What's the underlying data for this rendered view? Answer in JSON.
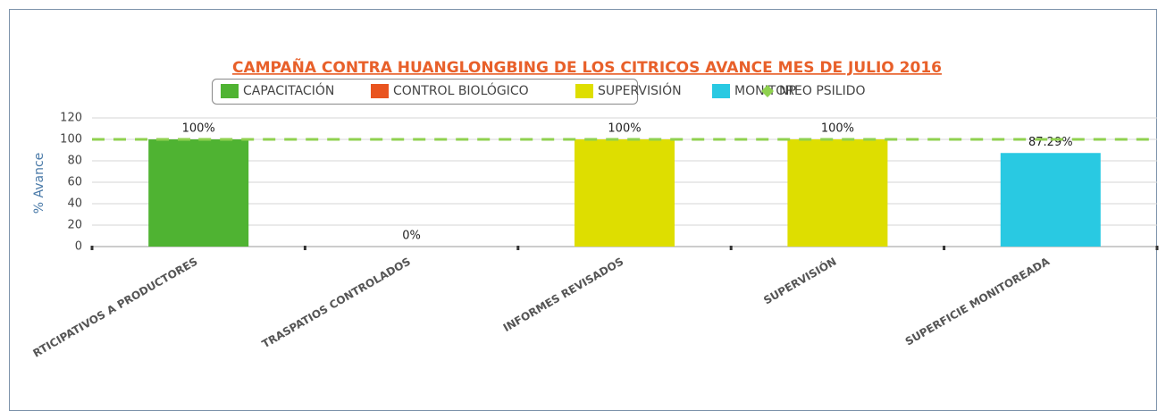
{
  "chart_data": {
    "type": "bar",
    "title": "CAMPAÑA CONTRA HUANGLONGBING DE LOS CITRICOS AVANCE MES DE JULIO 2016",
    "y_label": "% Avance",
    "categories": [
      "RTICIPATIVOS A PRODUCTORES",
      "TRASPATIOS CONTROLADOS",
      "INFORMES REVISADOS",
      "SUPERVISIÓN",
      "SUPERFICIE MONITOREADA"
    ],
    "series": [
      {
        "name": "CAPACITACIÓN",
        "color": "#4fb332",
        "values": [
          100,
          null,
          null,
          null,
          null
        ],
        "value_labels": [
          "100%",
          null,
          null,
          null,
          null
        ]
      },
      {
        "name": "CONTROL BIOLÓGICO",
        "color": "#e9541f",
        "values": [
          null,
          0,
          null,
          null,
          null
        ],
        "value_labels": [
          null,
          "0%",
          null,
          null,
          null
        ]
      },
      {
        "name": "SUPERVISIÓN",
        "color": "#dede00",
        "values": [
          null,
          null,
          100,
          100,
          null
        ],
        "value_labels": [
          null,
          null,
          "100%",
          "100%",
          null
        ]
      },
      {
        "name": "MONITOREO PSILIDO",
        "color": "#29c9e2",
        "values": [
          null,
          null,
          null,
          null,
          87.29
        ],
        "value_labels": [
          null,
          null,
          null,
          null,
          "87.29%"
        ]
      },
      {
        "name": "NP",
        "type": "line",
        "color": "#8fd14f",
        "values": [
          100,
          100,
          100,
          100,
          100
        ]
      }
    ],
    "ylim": [
      0,
      120
    ],
    "yticks": [
      0,
      20,
      40,
      60,
      80,
      100,
      120
    ],
    "grid": true
  }
}
